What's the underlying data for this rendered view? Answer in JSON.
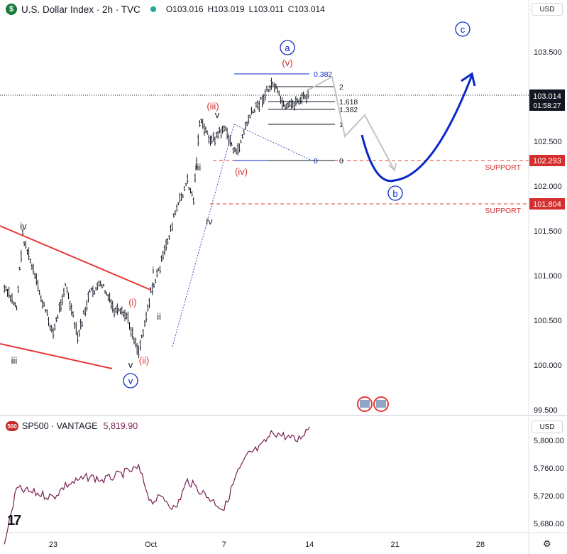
{
  "header": {
    "symbol_logo": "$",
    "title": "U.S. Dollar Index · 2h · TVC",
    "open_label": "O",
    "open": "103.016",
    "high_label": "H",
    "high": "103.019",
    "low_label": "L",
    "low": "103.011",
    "close_label": "C",
    "close": "103.014",
    "status_color": "#22ab94"
  },
  "currency_label": "USD",
  "sp500": {
    "logo": "500",
    "name": "SP500 · VANTAGE",
    "value": "5,819.90",
    "currency_label": "USD",
    "line_color": "#7a1f52"
  },
  "colors": {
    "accent_blue": "#0a28c8",
    "wave_red": "#d32f2f",
    "support_red": "#e53935",
    "price_label_bg": "#131722"
  },
  "chart_data": [
    {
      "type": "line",
      "title": "U.S. Dollar Index · 2h · TVC",
      "price_axis": [
        "103.500",
        "103.000",
        "102.500",
        "102.000",
        "101.500",
        "101.000",
        "100.500",
        "100.000",
        "99.500"
      ],
      "x_axis": [
        "23",
        "Oct",
        "7",
        "14",
        "21",
        "28"
      ],
      "last_price": "103.014",
      "countdown": "01:58:27",
      "support_levels": [
        {
          "label": "SUPPORT",
          "value": "102.293"
        },
        {
          "label": "SUPPORT",
          "value": "101.804"
        }
      ],
      "fib_levels": [
        "0.382",
        "2",
        "1.618",
        "1.382",
        "1",
        "0",
        "0"
      ],
      "approx_price_path": [
        {
          "x": "Sep 19",
          "y": 100.85
        },
        {
          "x": "Sep 20",
          "y": 100.65
        },
        {
          "x": "Sep 20.5",
          "y": 101.45
        },
        {
          "x": "Sep 22",
          "y": 100.75
        },
        {
          "x": "Sep 23",
          "y": 100.35
        },
        {
          "x": "Sep 24",
          "y": 100.9
        },
        {
          "x": "Sep 25",
          "y": 100.3
        },
        {
          "x": "Sep 26",
          "y": 100.8
        },
        {
          "x": "Sep 27",
          "y": 100.9
        },
        {
          "x": "Sep 28",
          "y": 100.6
        },
        {
          "x": "Sep 29",
          "y": 100.55
        },
        {
          "x": "Sep 30",
          "y": 100.15
        },
        {
          "x": "Oct 1",
          "y": 100.8
        },
        {
          "x": "Oct 2",
          "y": 101.2
        },
        {
          "x": "Oct 3",
          "y": 101.7
        },
        {
          "x": "Oct 4",
          "y": 102.05
        },
        {
          "x": "Oct 4.5",
          "y": 101.85
        },
        {
          "x": "Oct 5",
          "y": 102.72
        },
        {
          "x": "Oct 6",
          "y": 102.5
        },
        {
          "x": "Oct 7",
          "y": 102.65
        },
        {
          "x": "Oct 8",
          "y": 102.35
        },
        {
          "x": "Oct 9",
          "y": 102.75
        },
        {
          "x": "Oct 10",
          "y": 102.95
        },
        {
          "x": "Oct 11",
          "y": 103.15
        },
        {
          "x": "Oct 12",
          "y": 102.85
        },
        {
          "x": "Oct 13",
          "y": 102.95
        },
        {
          "x": "Oct 14",
          "y": 103.014
        }
      ],
      "wave_labels": [
        {
          "text": "iv",
          "style": "black"
        },
        {
          "text": "iii",
          "style": "black"
        },
        {
          "text": "v",
          "style": "black"
        },
        {
          "text": "v",
          "style": "blue-circle"
        },
        {
          "text": "(i)",
          "style": "red"
        },
        {
          "text": "(ii)",
          "style": "red"
        },
        {
          "text": "i",
          "style": "black"
        },
        {
          "text": "ii",
          "style": "black"
        },
        {
          "text": "iii",
          "style": "black"
        },
        {
          "text": "iv",
          "style": "black"
        },
        {
          "text": "v",
          "style": "black"
        },
        {
          "text": "(iii)",
          "style": "red"
        },
        {
          "text": "(iv)",
          "style": "red"
        },
        {
          "text": "(v)",
          "style": "red"
        },
        {
          "text": "a",
          "style": "blue-circle"
        },
        {
          "text": "b",
          "style": "blue-circle"
        },
        {
          "text": "c",
          "style": "blue-circle"
        }
      ]
    },
    {
      "type": "line",
      "title": "SP500 · VANTAGE",
      "price_axis": [
        "5,800.00",
        "5,760.00",
        "5,720.00",
        "5,680.00"
      ],
      "last_value": "5,819.90",
      "approx_path": [
        {
          "x": "Sep 19",
          "y": 5650
        },
        {
          "x": "Sep 20",
          "y": 5730
        },
        {
          "x": "Sep 23",
          "y": 5718
        },
        {
          "x": "Sep 24",
          "y": 5735
        },
        {
          "x": "Sep 26",
          "y": 5748
        },
        {
          "x": "Sep 27",
          "y": 5742
        },
        {
          "x": "Sep 30",
          "y": 5760
        },
        {
          "x": "Oct 1",
          "y": 5712
        },
        {
          "x": "Oct 2",
          "y": 5718
        },
        {
          "x": "Oct 3",
          "y": 5700
        },
        {
          "x": "Oct 4",
          "y": 5742
        },
        {
          "x": "Oct 7",
          "y": 5700
        },
        {
          "x": "Oct 8",
          "y": 5750
        },
        {
          "x": "Oct 9",
          "y": 5780
        },
        {
          "x": "Oct 10",
          "y": 5790
        },
        {
          "x": "Oct 11",
          "y": 5812
        },
        {
          "x": "Oct 13",
          "y": 5800
        },
        {
          "x": "Oct 14",
          "y": 5819.9
        }
      ]
    }
  ]
}
